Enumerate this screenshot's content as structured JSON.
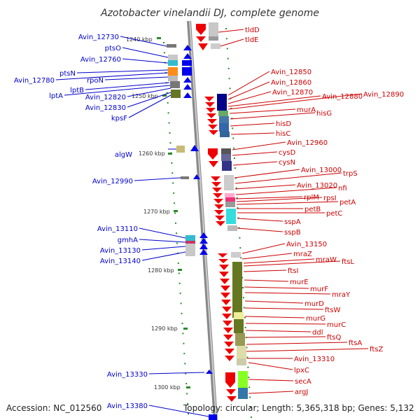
{
  "title": "Azotobacter vinelandii DJ, complete genome",
  "footer": {
    "accession": "Accession: NC_012560",
    "topology": "Topology: circular; Length: 5,365,318 bp; Genes: 5,132"
  },
  "ticks": [
    "1240 kbp",
    "1250 kbp",
    "1260 kbp",
    "1270 kbp",
    "1280 kbp",
    "1290 kbp",
    "1300 kbp"
  ],
  "left_labels": [
    "Avin_12730",
    "ptsO",
    "Avin_12760",
    "ptsN",
    "Avin_12780",
    "rpoN",
    "lptB",
    "lptA",
    "Avin_12820",
    "Avin_12830",
    "kpsF",
    "algW",
    "Avin_12990",
    "Avin_13110",
    "gmhA",
    "Avin_13130",
    "Avin_13140",
    "Avin_13330",
    "Avin_13380"
  ],
  "right_labels": [
    "tldD",
    "tldE",
    "Avin_12850",
    "Avin_12860",
    "Avin_12870",
    "Avin_12880",
    "Avin_12890",
    "murA",
    "hisG",
    "hisD",
    "hisC",
    "Avin_12960",
    "cysD",
    "cysN",
    "Avin_13000",
    "trpS",
    "Avin_13020",
    "nfi",
    "rplM",
    "rpsI",
    "petA",
    "petB",
    "petC",
    "sspA",
    "sspB",
    "Avin_13150",
    "mraZ",
    "mraW",
    "ftsL",
    "ftsI",
    "murE",
    "murF",
    "mraY",
    "murD",
    "ftsW",
    "murG",
    "murC",
    "ddl",
    "ftsQ",
    "ftsA",
    "ftsZ",
    "Avin_13310",
    "lpxC",
    "secA",
    "argJ"
  ],
  "colors": {
    "left_label": "#0000cc",
    "right_label": "#cc0000",
    "backbone": "#999999",
    "dots": "#2a8a2a",
    "forward_arrows": "#0000ee",
    "reverse_arrows": "#ee0000"
  }
}
